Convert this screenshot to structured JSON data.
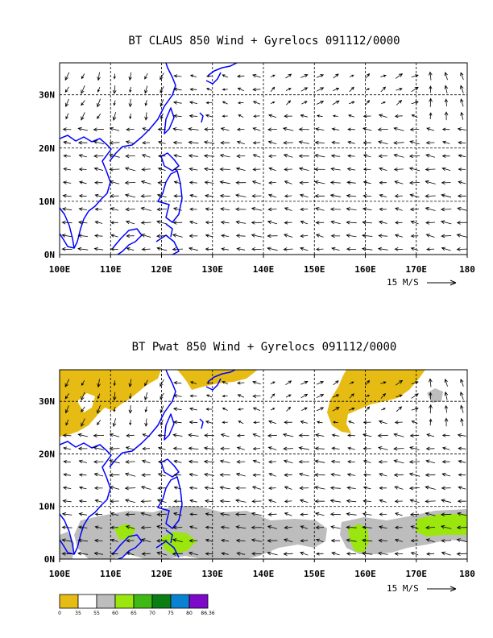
{
  "chart_data": [
    {
      "type": "vector",
      "title": "BT CLAUS 850 Wind + Gyrelocs 091112/0000",
      "x_ticks": [
        "100E",
        "110E",
        "120E",
        "130E",
        "140E",
        "150E",
        "160E",
        "170E",
        "180"
      ],
      "y_ticks": [
        "0N",
        "10N",
        "20N",
        "30N"
      ],
      "xlim": [
        100,
        180
      ],
      "ylim": [
        0,
        36
      ],
      "grid": true,
      "vector_scale_label": "15 M/S",
      "wind_regions": [
        {
          "lon": [
            100,
            122
          ],
          "lat": [
            25,
            36
          ],
          "u": -2,
          "v": -6
        },
        {
          "lon": [
            140,
            172
          ],
          "lat": [
            28,
            36
          ],
          "u": 5,
          "v": 3
        },
        {
          "lon": [
            172,
            180
          ],
          "lat": [
            25,
            36
          ],
          "u": -1,
          "v": 7
        },
        {
          "lon": [
            100,
            180
          ],
          "lat": [
            0,
            25
          ],
          "u": -8,
          "v": 1
        }
      ]
    },
    {
      "type": "vector",
      "title": "BT Pwat 850 Wind + Gyrelocs 091112/0000",
      "x_ticks": [
        "100E",
        "110E",
        "120E",
        "130E",
        "140E",
        "150E",
        "160E",
        "170E",
        "180"
      ],
      "y_ticks": [
        "0N",
        "10N",
        "20N",
        "30N"
      ],
      "xlim": [
        100,
        180
      ],
      "ylim": [
        0,
        36
      ],
      "grid": true,
      "vector_scale_label": "15 M/S",
      "colorbar": {
        "labels": [
          "0",
          "35",
          "55",
          "60",
          "65",
          "70",
          "75",
          "80",
          "86.36"
        ],
        "colors": [
          "#e6bc14",
          "#ffffff",
          "#bdbdbd",
          "#9be60f",
          "#41b914",
          "#0a7d14",
          "#0a82d2",
          "#7d0ac8"
        ]
      }
    }
  ]
}
